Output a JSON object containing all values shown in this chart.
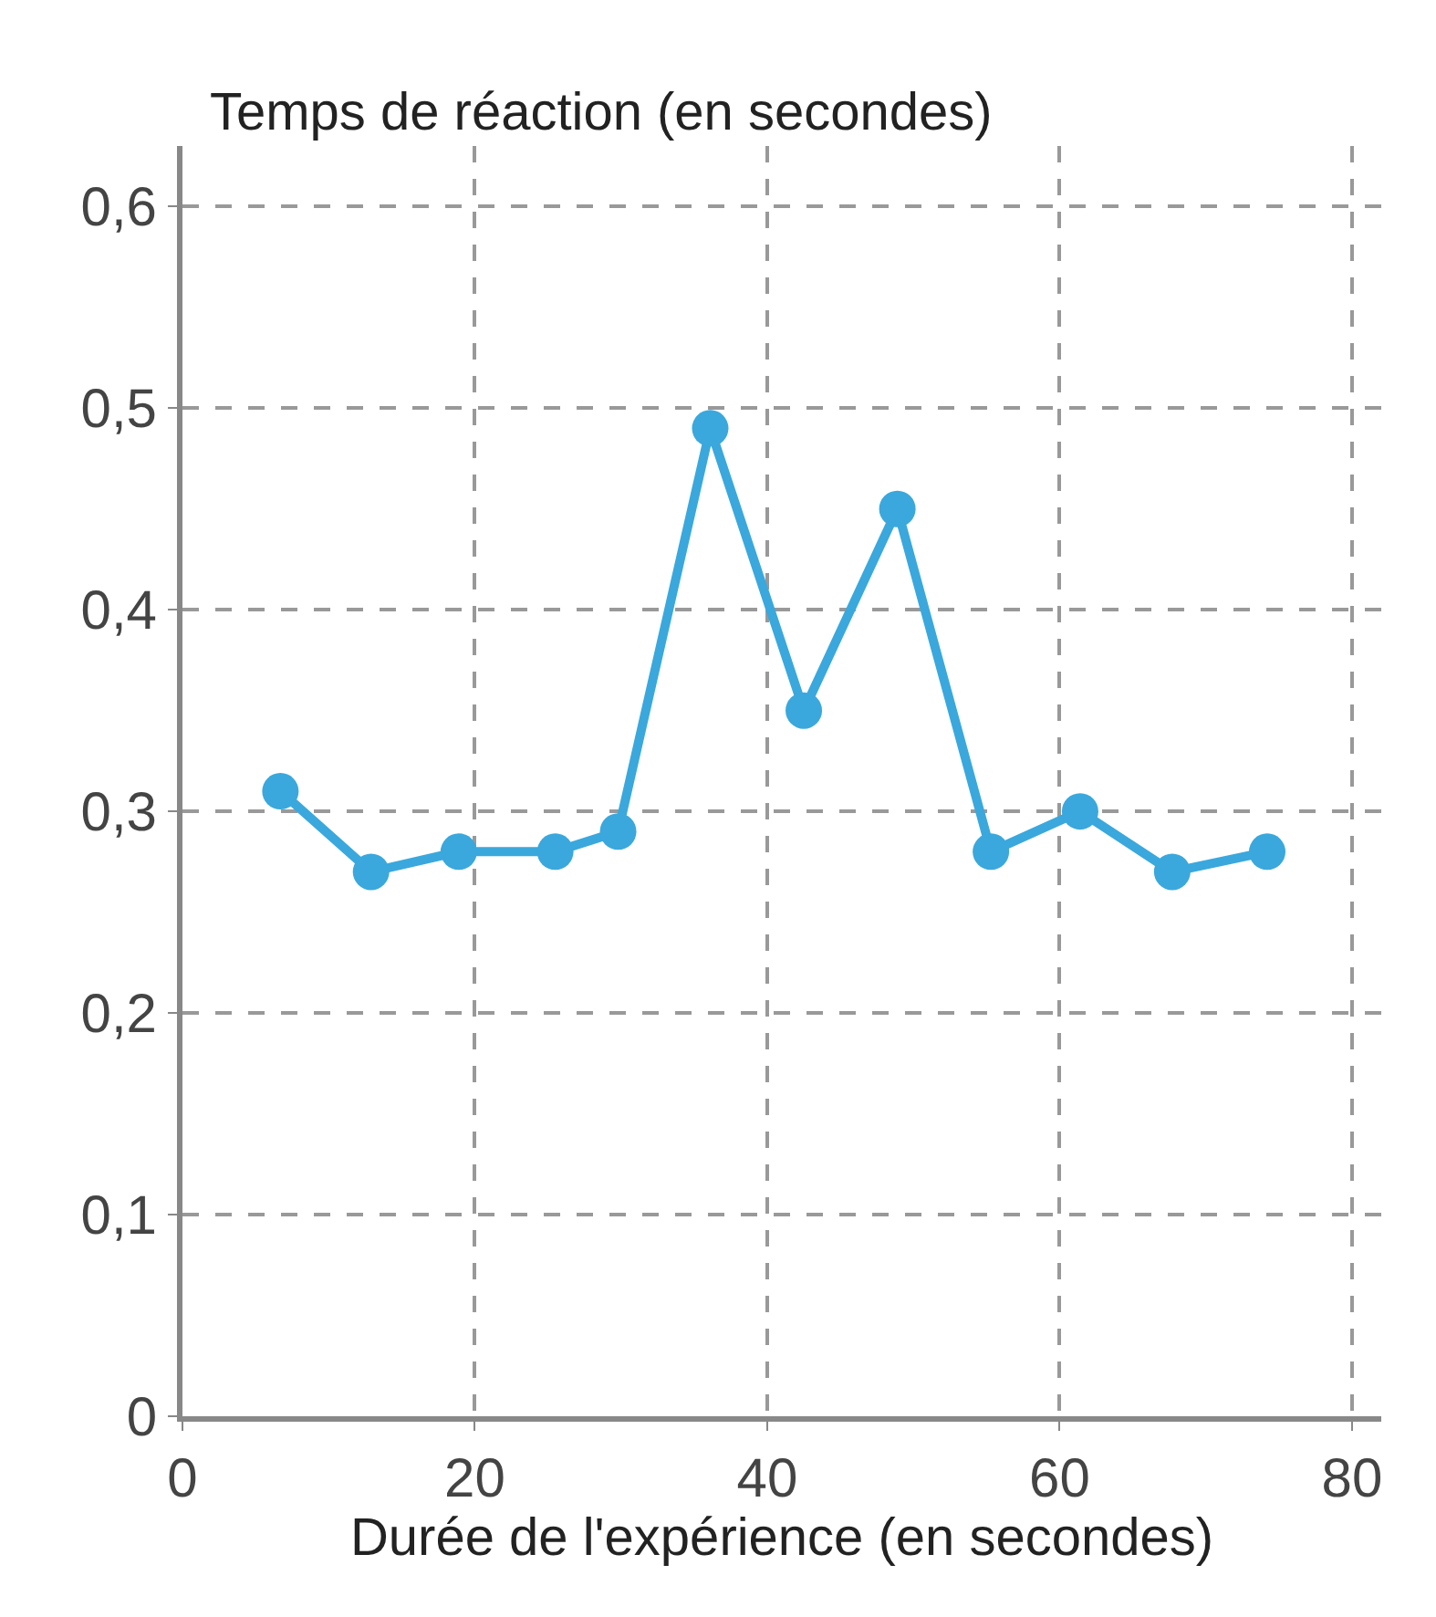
{
  "chart_data": {
    "type": "line",
    "ylabel": "Temps de réaction (en secondes)",
    "xlabel": "Durée de l'expérience (en secondes)",
    "x": [
      6.7,
      12.9,
      18.9,
      25.5,
      29.8,
      36.1,
      42.5,
      48.9,
      55.3,
      61.4,
      67.7,
      74.2
    ],
    "series": [
      {
        "color": "#3aa8dc",
        "values": [
          0.31,
          0.27,
          0.28,
          0.28,
          0.29,
          0.49,
          0.35,
          0.45,
          0.28,
          0.3,
          0.27,
          0.28
        ]
      }
    ],
    "xlim": [
      0,
      82
    ],
    "ylim": [
      0,
      0.63
    ],
    "xticks": [
      0,
      20,
      40,
      60,
      80
    ],
    "yticks": [
      {
        "value": 0,
        "label": "0"
      },
      {
        "value": 0.1,
        "label": "0,1"
      },
      {
        "value": 0.2,
        "label": "0,2"
      },
      {
        "value": 0.3,
        "label": "0,3"
      },
      {
        "value": 0.4,
        "label": "0,4"
      },
      {
        "value": 0.5,
        "label": "0,5"
      },
      {
        "value": 0.6,
        "label": "0,6"
      }
    ],
    "grid": true,
    "marker": "circle",
    "line_style": "solid"
  }
}
